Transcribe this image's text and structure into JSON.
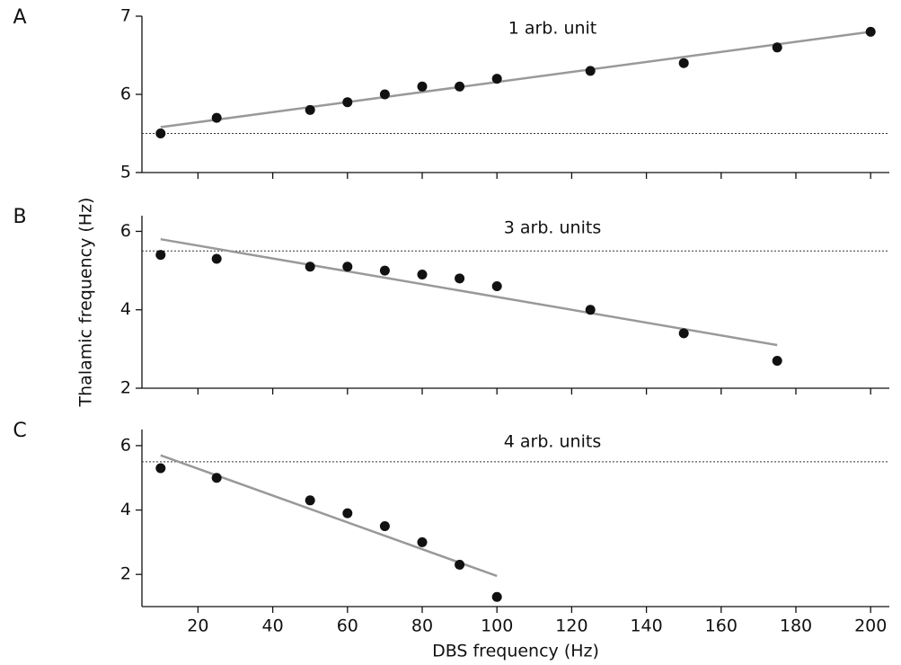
{
  "chart_data": [
    {
      "type": "scatter",
      "panel": "A",
      "annotation": "1 arb. unit",
      "xlim": [
        5,
        205
      ],
      "ylim": [
        5,
        7
      ],
      "yticks": [
        5,
        6,
        7
      ],
      "points": {
        "x": [
          10,
          25,
          50,
          60,
          70,
          80,
          90,
          100,
          125,
          150,
          175,
          200
        ],
        "y": [
          5.5,
          5.7,
          5.8,
          5.9,
          6.0,
          6.1,
          6.1,
          6.2,
          6.3,
          6.4,
          6.6,
          6.8
        ],
        "color": "#111111"
      },
      "fit": {
        "x": [
          10,
          200
        ],
        "y": [
          5.58,
          6.8
        ],
        "color": "#999999"
      },
      "reference_line": 5.5
    },
    {
      "type": "scatter",
      "panel": "B",
      "annotation": "3 arb. units",
      "ylabel": "Thalamic frequency (Hz)",
      "xlim": [
        5,
        205
      ],
      "ylim": [
        2,
        6.4
      ],
      "yticks": [
        2,
        4,
        6
      ],
      "points": {
        "x": [
          10,
          25,
          50,
          60,
          70,
          80,
          90,
          100,
          125,
          150,
          175
        ],
        "y": [
          5.4,
          5.3,
          5.1,
          5.1,
          5.0,
          4.9,
          4.8,
          4.6,
          4.0,
          3.4,
          2.7
        ],
        "color": "#111111"
      },
      "fit": {
        "x": [
          10,
          175
        ],
        "y": [
          5.8,
          3.1
        ],
        "color": "#999999"
      },
      "reference_line": 5.5
    },
    {
      "type": "scatter",
      "panel": "C",
      "annotation": "4 arb. units",
      "xlabel": "DBS frequency (Hz)",
      "xlim": [
        5,
        205
      ],
      "ylim": [
        1,
        6.5
      ],
      "yticks": [
        2,
        4,
        6
      ],
      "xticks": [
        20,
        40,
        60,
        80,
        100,
        120,
        140,
        160,
        180,
        200
      ],
      "points": {
        "x": [
          10,
          25,
          50,
          60,
          70,
          80,
          90,
          100
        ],
        "y": [
          5.3,
          5.0,
          4.3,
          3.9,
          3.5,
          3.0,
          2.3,
          1.3
        ],
        "color": "#111111"
      },
      "fit": {
        "x": [
          10,
          100
        ],
        "y": [
          5.7,
          1.95
        ],
        "color": "#999999"
      },
      "reference_line": 5.5
    }
  ]
}
